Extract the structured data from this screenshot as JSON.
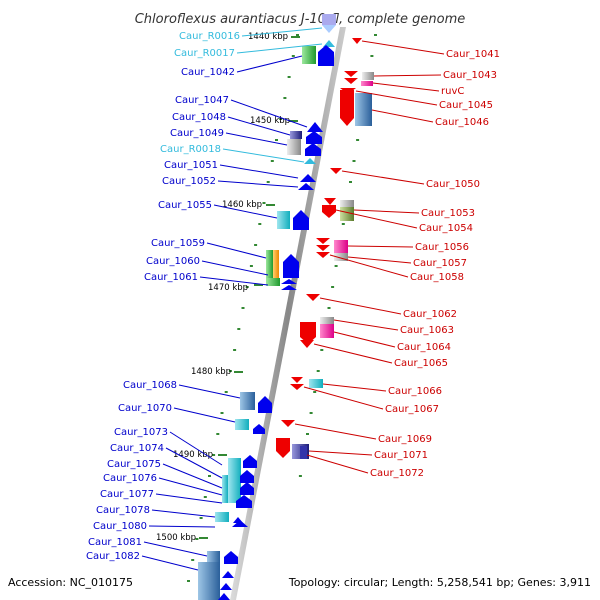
{
  "title": "Chloroflexus aurantiacus J-10-fl, complete genome",
  "accession": "Accession: NC_010175",
  "topology": "Topology: circular; Length: 5,258,541 bp; Genes: 3,911",
  "colors": {
    "left_label": "#0000cc",
    "rna_label": "#33bbdd",
    "right_label": "#cc0000",
    "backbone": "#999999",
    "tick": "#338833",
    "forward": "#0000ee",
    "reverse": "#ee0000"
  },
  "ticks": [
    "1440 kbp",
    "1450 kbp",
    "1460 kbp",
    "1470 kbp",
    "1480 kbp",
    "1490 kbp",
    "1500 kbp"
  ],
  "left_labels": [
    {
      "text": "Caur_R0016",
      "kind": "rna"
    },
    {
      "text": "Caur_R0017",
      "kind": "rna"
    },
    {
      "text": "Caur_1042",
      "kind": "gene"
    },
    {
      "text": "Caur_1047",
      "kind": "gene"
    },
    {
      "text": "Caur_1048",
      "kind": "gene"
    },
    {
      "text": "Caur_1049",
      "kind": "gene"
    },
    {
      "text": "Caur_R0018",
      "kind": "rna"
    },
    {
      "text": "Caur_1051",
      "kind": "gene"
    },
    {
      "text": "Caur_1052",
      "kind": "gene"
    },
    {
      "text": "Caur_1055",
      "kind": "gene"
    },
    {
      "text": "Caur_1059",
      "kind": "gene"
    },
    {
      "text": "Caur_1060",
      "kind": "gene"
    },
    {
      "text": "Caur_1061",
      "kind": "gene"
    },
    {
      "text": "Caur_1068",
      "kind": "gene"
    },
    {
      "text": "Caur_1070",
      "kind": "gene"
    },
    {
      "text": "Caur_1073",
      "kind": "gene"
    },
    {
      "text": "Caur_1074",
      "kind": "gene"
    },
    {
      "text": "Caur_1075",
      "kind": "gene"
    },
    {
      "text": "Caur_1076",
      "kind": "gene"
    },
    {
      "text": "Caur_1077",
      "kind": "gene"
    },
    {
      "text": "Caur_1078",
      "kind": "gene"
    },
    {
      "text": "Caur_1080",
      "kind": "gene"
    },
    {
      "text": "Caur_1081",
      "kind": "gene"
    },
    {
      "text": "Caur_1082",
      "kind": "gene"
    }
  ],
  "right_labels": [
    {
      "text": "Caur_1041"
    },
    {
      "text": "Caur_1043"
    },
    {
      "text": "ruvC"
    },
    {
      "text": "Caur_1045"
    },
    {
      "text": "Caur_1046"
    },
    {
      "text": "Caur_1050"
    },
    {
      "text": "Caur_1053"
    },
    {
      "text": "Caur_1054"
    },
    {
      "text": "Caur_1056"
    },
    {
      "text": "Caur_1057"
    },
    {
      "text": "Caur_1058"
    },
    {
      "text": "Caur_1062"
    },
    {
      "text": "Caur_1063"
    },
    {
      "text": "Caur_1064"
    },
    {
      "text": "Caur_1065"
    },
    {
      "text": "Caur_1066"
    },
    {
      "text": "Caur_1067"
    },
    {
      "text": "Caur_1069"
    },
    {
      "text": "Caur_1071"
    },
    {
      "text": "Caur_1072"
    }
  ]
}
